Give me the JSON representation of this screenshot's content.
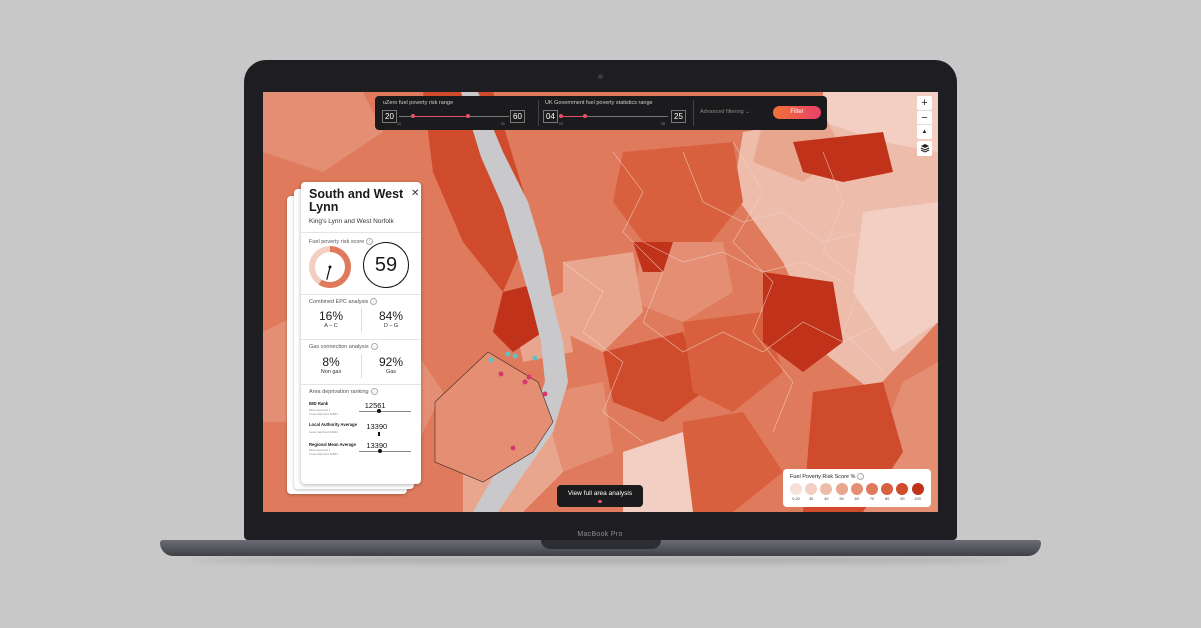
{
  "device": {
    "brand": "MacBook Pro"
  },
  "filters": {
    "uzero": {
      "label": "uZero fuel poverty risk range",
      "min": "20",
      "max": "60",
      "tick_min": "10",
      "tick_max": "90"
    },
    "gov": {
      "label": "UK Government fuel poverty statistics range",
      "min": "04",
      "max": "25",
      "tick_min": "03",
      "tick_max": "98"
    },
    "advanced_label": "Advanced filtering",
    "filter_button": "Filter"
  },
  "map_controls": {
    "zoom_in": "+",
    "zoom_out": "−",
    "compass": "▲",
    "layers_icon": "layers-icon"
  },
  "panel": {
    "title": "South and West Lynn",
    "subtitle": "King's Lynn and West Norfolk",
    "risk": {
      "label": "Fuel poverty risk score",
      "score": "59",
      "score_value": 59
    },
    "epc": {
      "label": "Combined EPC analysis",
      "left": {
        "value": "16%",
        "label": "A – C"
      },
      "right": {
        "value": "84%",
        "label": "D – G"
      }
    },
    "gas": {
      "label": "Gas connection analysis",
      "left": {
        "value": "8%",
        "label": "Non gas"
      },
      "right": {
        "value": "92%",
        "label": "Gas"
      }
    },
    "deprivation": {
      "label": "Area deprivation ranking",
      "rows": [
        {
          "name": "IMD Rank",
          "meta1": "Most deprived 1",
          "meta2": "Least deprived 32844",
          "value": "12561",
          "fraction": 0.38
        },
        {
          "name": "Local Authority Average",
          "meta1": "Least deprived 32844",
          "value": "13390",
          "fraction": 0.41
        },
        {
          "name": "Regional Mean Average",
          "meta1": "Most deprived 1",
          "meta2": "Least deprived 32844",
          "value": "13390",
          "fraction": 0.41
        }
      ]
    }
  },
  "view_button": "View full area analysis",
  "legend": {
    "title": "Fuel Poverty Risk Score %",
    "items": [
      {
        "label": "0-20",
        "color": "#f6e0d8"
      },
      {
        "label": "30",
        "color": "#f2cfc2"
      },
      {
        "label": "40",
        "color": "#eebcab"
      },
      {
        "label": "50",
        "color": "#e9a68f"
      },
      {
        "label": "60",
        "color": "#e48f74"
      },
      {
        "label": "70",
        "color": "#e07a5c"
      },
      {
        "label": "80",
        "color": "#d9603f"
      },
      {
        "label": "90",
        "color": "#d04a2c"
      },
      {
        "label": "100",
        "color": "#c0321a"
      }
    ]
  },
  "colors": {
    "accent": "#e8506a",
    "filter_gradient_start": "#f07238",
    "river": "#c9c9cc"
  }
}
